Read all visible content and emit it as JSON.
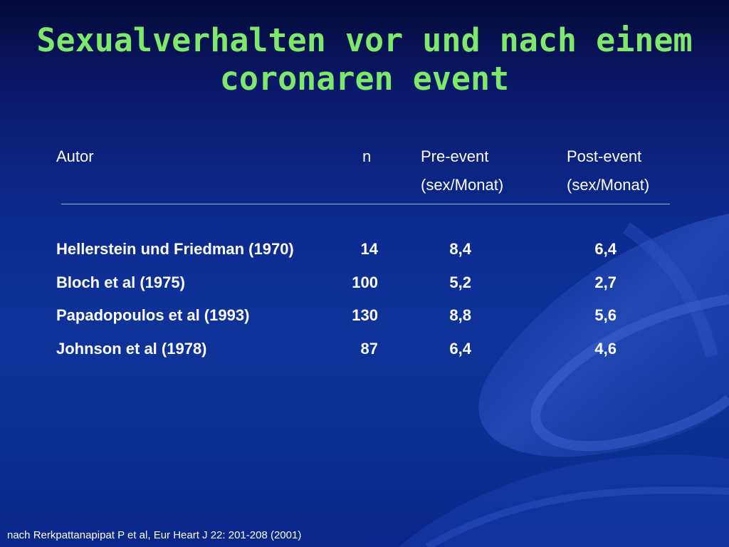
{
  "colors": {
    "title": "#7de86a",
    "text": "#ffffff",
    "background": "#0d2a8f"
  },
  "title": {
    "line1": "Sexualverhalten vor und nach einem",
    "line2": "coronaren event"
  },
  "table": {
    "headers": {
      "autor": "Autor",
      "n": "n",
      "pre_line1": "Pre-event",
      "pre_line2": "(sex/Monat)",
      "post_line1": "Post-event",
      "post_line2": "(sex/Monat)"
    },
    "rows": [
      {
        "autor": "Hellerstein und Friedman (1970)",
        "n": "14",
        "pre": "8,4",
        "post": "6,4"
      },
      {
        "autor": "Bloch et al (1975)",
        "n": "100",
        "pre": "5,2",
        "post": "2,7"
      },
      {
        "autor": "Papadopoulos et al (1993)",
        "n": "130",
        "pre": "8,8",
        "post": "5,6"
      },
      {
        "autor": "Johnson et al (1978)",
        "n": "87",
        "pre": "6,4",
        "post": "4,6"
      }
    ]
  },
  "source": "nach Rerkpattanapipat P et al, Eur Heart J 22: 201-208 (2001)"
}
